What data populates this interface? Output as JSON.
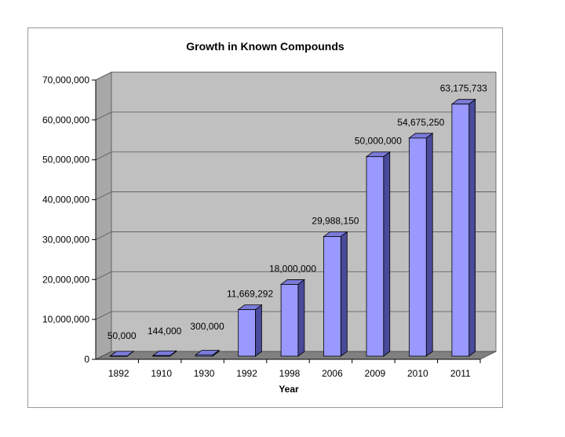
{
  "chart_data": {
    "type": "bar",
    "title": "Growth in Known Compounds",
    "xlabel": "Year",
    "ylabel": "",
    "categories": [
      "1892",
      "1910",
      "1930",
      "1992",
      "1998",
      "2006",
      "2009",
      "2010",
      "2011"
    ],
    "values": [
      50000,
      144000,
      300000,
      11669292,
      18000000,
      29988150,
      50000000,
      54675250,
      63175733
    ],
    "data_labels": [
      "50,000",
      "144,000",
      "300,000",
      "11,669,292",
      "18,000,000",
      "29,988,150",
      "50,000,000",
      "54,675,250",
      "63,175,733"
    ],
    "y_ticks": [
      "0",
      "10,000,000",
      "20,000,000",
      "30,000,000",
      "40,000,000",
      "50,000,000",
      "60,000,000",
      "70,000,000"
    ],
    "ylim": [
      0,
      70000000
    ],
    "grid": true,
    "legend": "none",
    "colors": {
      "bar_front": "#9999ff",
      "bar_side": "#4a4a9a",
      "bar_top": "#7a7ad8",
      "wall": "#c0c0c0",
      "floor": "#808080"
    }
  }
}
